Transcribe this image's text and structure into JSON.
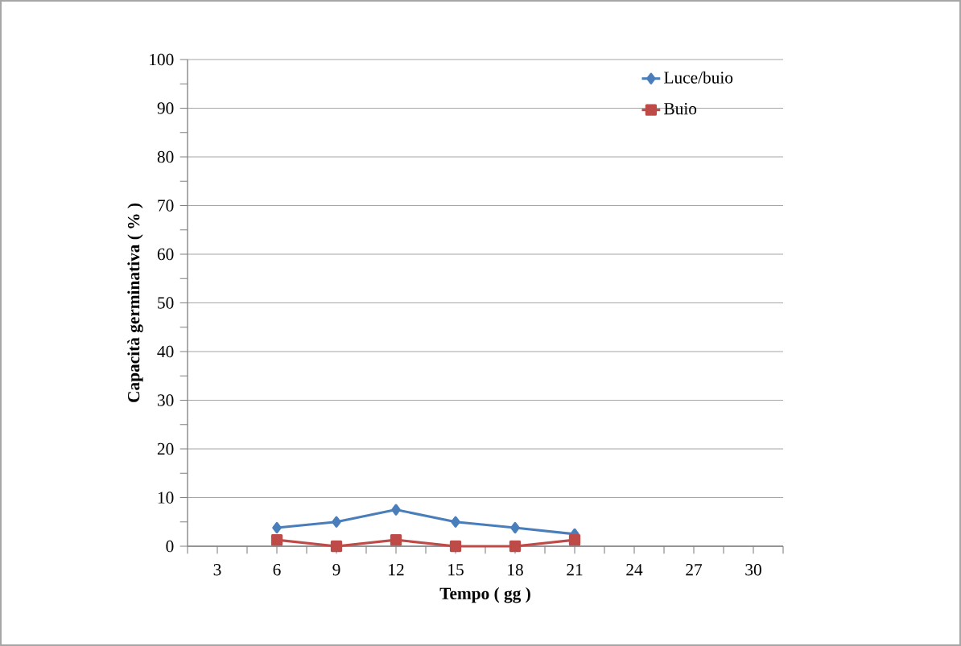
{
  "chart_data": {
    "type": "line",
    "xlabel": "Tempo ( gg )",
    "ylabel": "Capacità  germinativa ( % )",
    "categories": [
      "3",
      "6",
      "9",
      "12",
      "15",
      "18",
      "21",
      "24",
      "27",
      "30"
    ],
    "series": [
      {
        "name": "Luce/buio",
        "color": "#4a7ebb",
        "marker": "diamond",
        "values": [
          null,
          3.8,
          5.0,
          7.5,
          5.0,
          3.8,
          2.5,
          null,
          null,
          null
        ]
      },
      {
        "name": "Buio",
        "color": "#be4b48",
        "marker": "square",
        "values": [
          null,
          1.3,
          0,
          1.3,
          0,
          0,
          1.3,
          null,
          null,
          null
        ]
      }
    ],
    "ylim": [
      0,
      100
    ],
    "yticks": [
      0,
      10,
      20,
      30,
      40,
      50,
      60,
      70,
      80,
      90,
      100
    ],
    "grid": "y",
    "legend": "top right",
    "line_style": "solid"
  }
}
